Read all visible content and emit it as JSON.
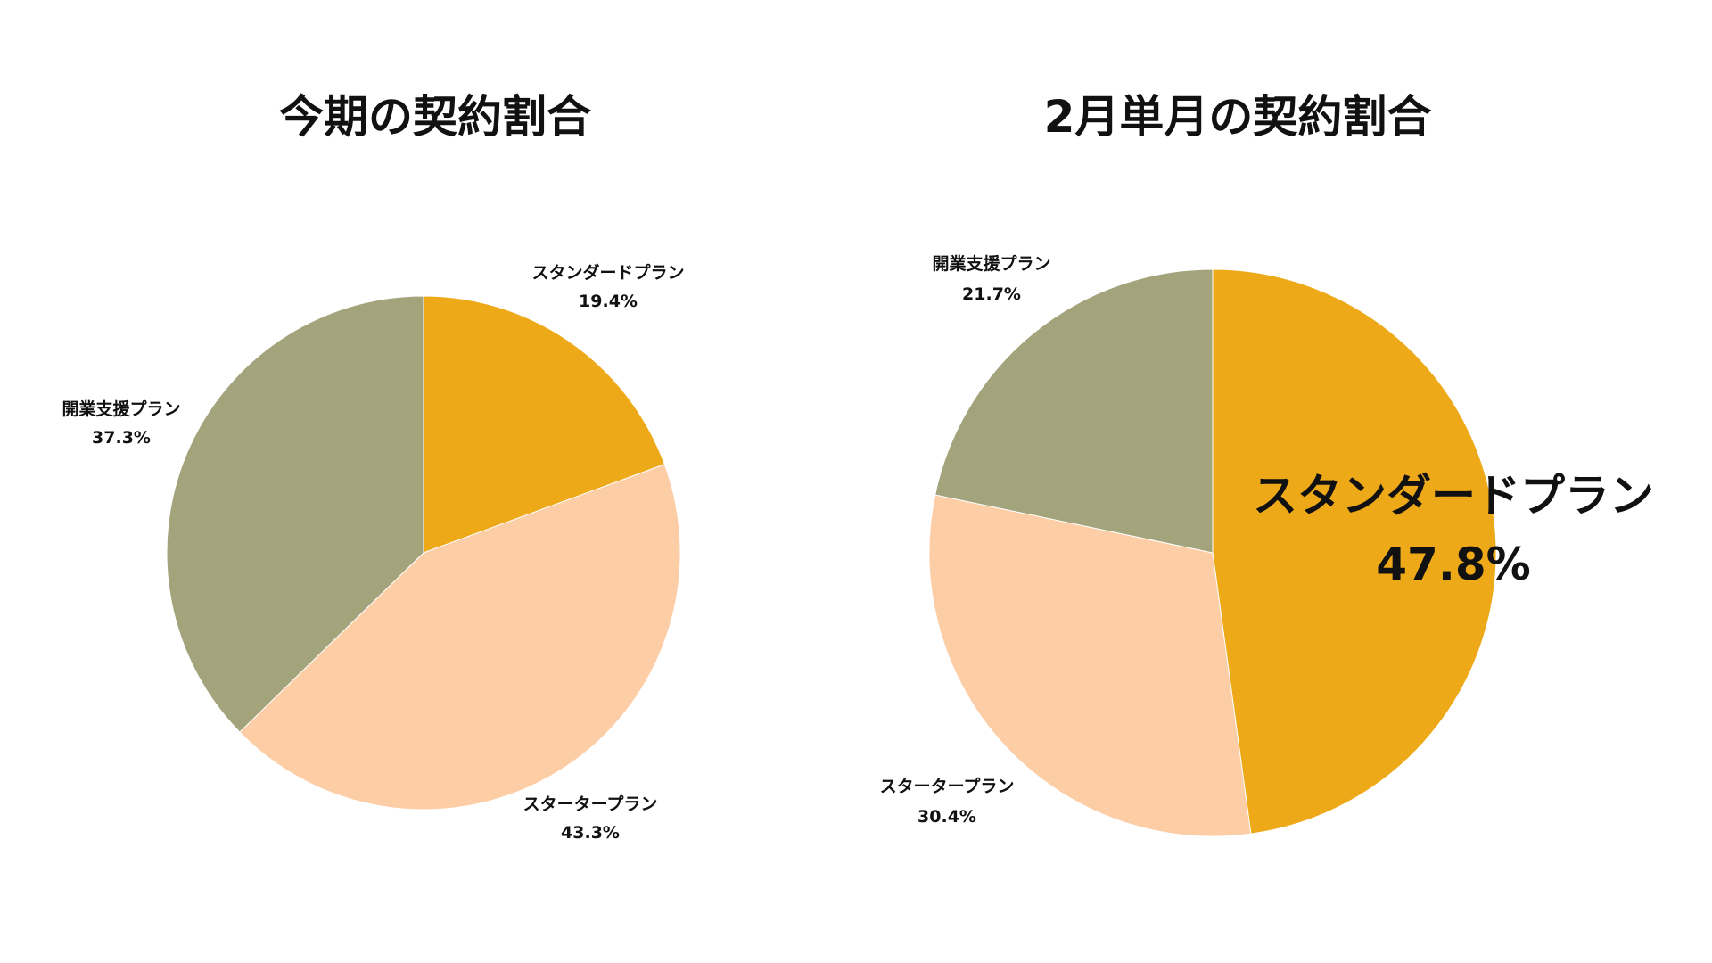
{
  "chart_data": [
    {
      "type": "pie",
      "title": "今期の契約割合",
      "slices": [
        {
          "name": "スタンダードプラン",
          "value": 19.4,
          "label": "19.4%",
          "color": "#EEA918"
        },
        {
          "name": "スタータープラン",
          "value": 43.3,
          "label": "43.3%",
          "color": "#FDCDA5"
        },
        {
          "name": "開業支援プラン",
          "value": 37.3,
          "label": "37.3%",
          "color": "#A3A47C"
        }
      ]
    },
    {
      "type": "pie",
      "title": "2月単月の契約割合",
      "slices": [
        {
          "name": "スタンダードプラン",
          "value": 47.8,
          "label": "47.8%",
          "color": "#EEA918"
        },
        {
          "name": "スタータープラン",
          "value": 30.4,
          "label": "30.4%",
          "color": "#FDCDA5"
        },
        {
          "name": "開業支援プラン",
          "value": 21.7,
          "label": "21.7%",
          "color": "#A3A47C"
        }
      ]
    }
  ]
}
